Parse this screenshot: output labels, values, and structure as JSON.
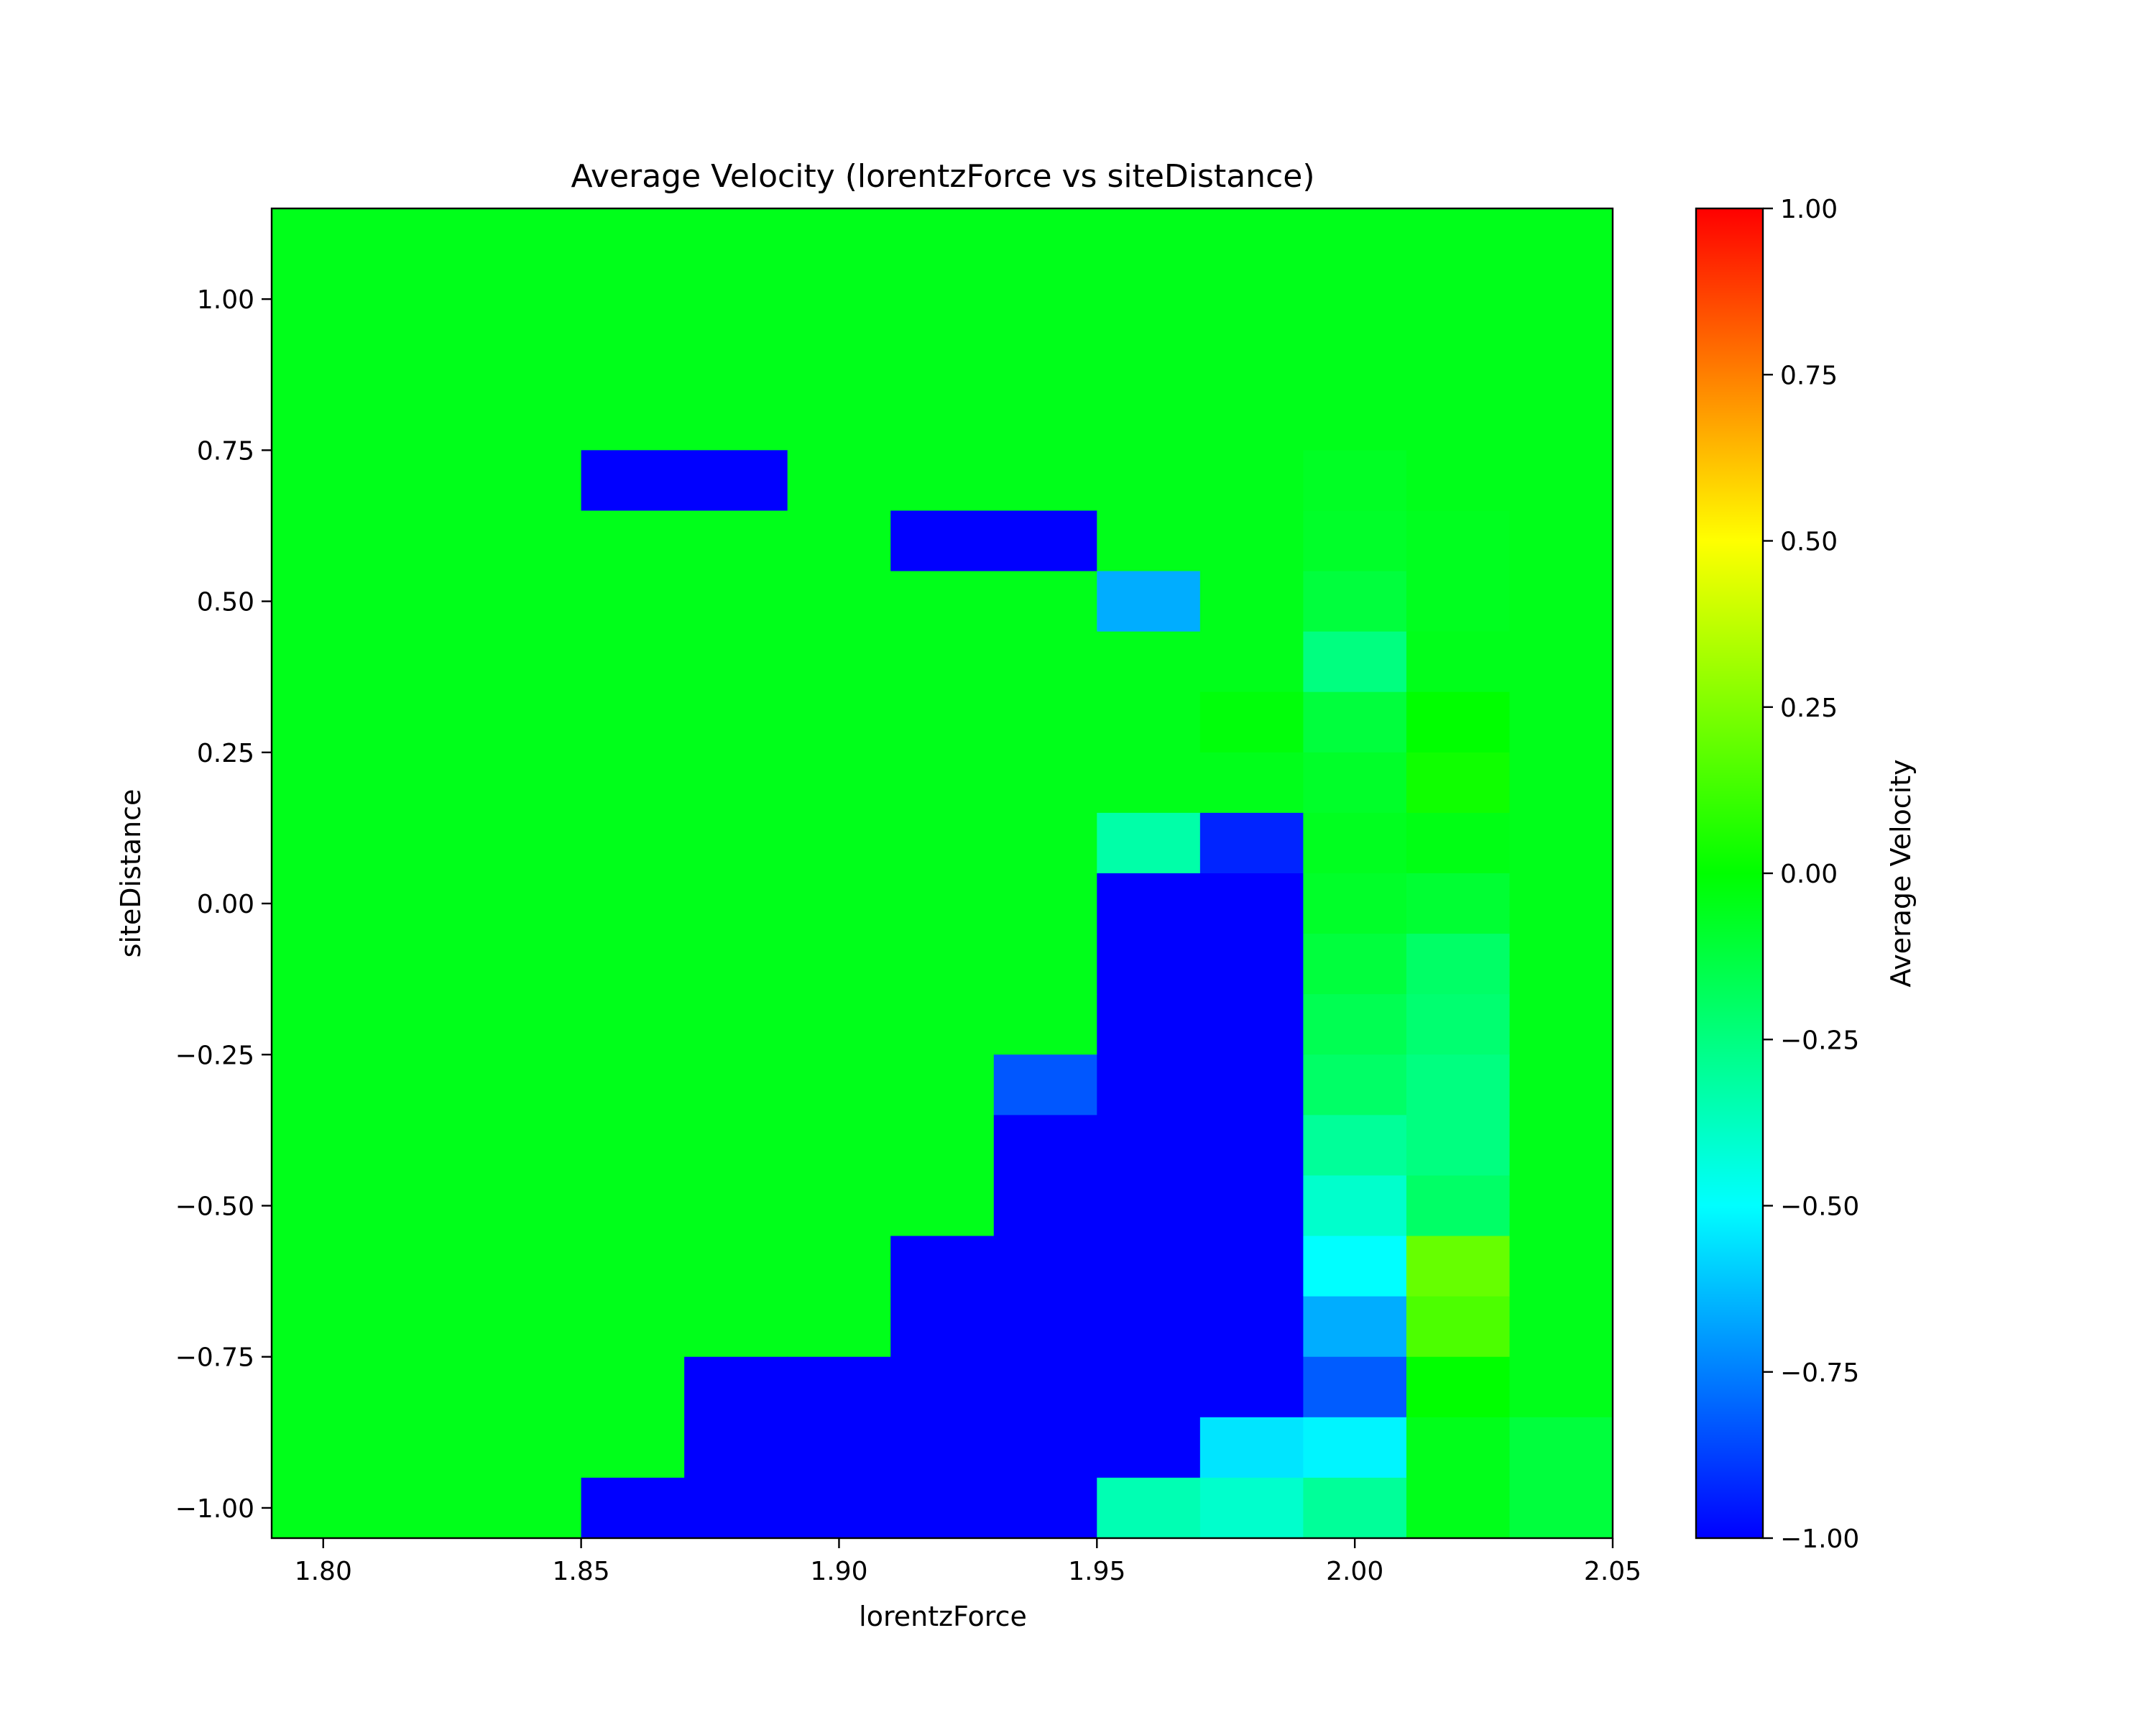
{
  "chart_data": {
    "type": "heatmap",
    "title": "Average Velocity (lorentzForce vs siteDistance)",
    "xlabel": "lorentzForce",
    "ylabel": "siteDistance",
    "colorbar_label": "Average Velocity",
    "colormap": "hsv (blue → cyan → green → yellow → red)",
    "xlim": [
      1.79,
      2.05
    ],
    "ylim": [
      -1.05,
      1.15
    ],
    "x_ticks": [
      "1.80",
      "1.85",
      "1.90",
      "1.95",
      "2.00",
      "2.05"
    ],
    "y_ticks": [
      "−1.00",
      "−0.75",
      "−0.50",
      "−0.25",
      "0.00",
      "0.25",
      "0.50",
      "0.75",
      "1.00"
    ],
    "colorbar_range": [
      -1.0,
      1.0
    ],
    "colorbar_ticks": [
      "−1.00",
      "−0.75",
      "−0.50",
      "−0.25",
      "0.00",
      "0.25",
      "0.50",
      "0.75",
      "1.00"
    ],
    "x_centers": [
      1.8,
      1.82,
      1.84,
      1.86,
      1.88,
      1.9,
      1.92,
      1.94,
      1.96,
      1.98,
      2.0,
      2.02,
      2.04
    ],
    "y_centers": [
      1.1,
      1.0,
      0.9,
      0.8,
      0.7,
      0.6,
      0.5,
      0.4,
      0.3,
      0.2,
      0.1,
      0.0,
      -0.1,
      -0.2,
      -0.3,
      -0.4,
      -0.5,
      -0.6,
      -0.7,
      -0.8,
      -0.9,
      -1.0
    ],
    "values": [
      [
        -0.05,
        -0.05,
        -0.05,
        -0.05,
        -0.05,
        -0.05,
        -0.05,
        -0.05,
        -0.05,
        -0.05,
        -0.05,
        -0.05,
        -0.05
      ],
      [
        -0.05,
        -0.05,
        -0.05,
        -0.05,
        -0.05,
        -0.05,
        -0.05,
        -0.05,
        -0.05,
        -0.05,
        -0.05,
        -0.05,
        -0.05
      ],
      [
        -0.05,
        -0.05,
        -0.05,
        -0.05,
        -0.05,
        -0.05,
        -0.05,
        -0.05,
        -0.05,
        -0.05,
        -0.05,
        -0.05,
        -0.05
      ],
      [
        -0.05,
        -0.05,
        -0.05,
        -0.05,
        -0.05,
        -0.05,
        -0.05,
        -0.05,
        -0.05,
        -0.05,
        -0.05,
        -0.05,
        -0.05
      ],
      [
        -0.05,
        -0.05,
        -0.05,
        -1.0,
        -1.0,
        -0.05,
        -0.05,
        -0.05,
        -0.05,
        -0.05,
        -0.07,
        -0.05,
        -0.05
      ],
      [
        -0.05,
        -0.05,
        -0.05,
        -0.05,
        -0.05,
        -0.05,
        -1.0,
        -1.0,
        -0.05,
        -0.05,
        -0.08,
        -0.06,
        -0.05
      ],
      [
        -0.05,
        -0.05,
        -0.05,
        -0.05,
        -0.05,
        -0.05,
        -0.05,
        -0.05,
        -0.66,
        -0.05,
        -0.12,
        -0.06,
        -0.05
      ],
      [
        -0.05,
        -0.05,
        -0.05,
        -0.05,
        -0.05,
        -0.05,
        -0.05,
        -0.05,
        -0.05,
        -0.05,
        -0.25,
        -0.05,
        -0.05
      ],
      [
        -0.05,
        -0.05,
        -0.05,
        -0.05,
        -0.05,
        -0.05,
        -0.05,
        -0.05,
        -0.05,
        -0.02,
        -0.12,
        0.0,
        -0.05
      ],
      [
        -0.05,
        -0.05,
        -0.05,
        -0.05,
        -0.05,
        -0.05,
        -0.05,
        -0.05,
        -0.05,
        -0.05,
        -0.08,
        0.03,
        -0.05
      ],
      [
        -0.05,
        -0.05,
        -0.05,
        -0.05,
        -0.05,
        -0.05,
        -0.05,
        -0.05,
        -0.33,
        -0.93,
        -0.06,
        -0.04,
        -0.05
      ],
      [
        -0.05,
        -0.05,
        -0.05,
        -0.05,
        -0.05,
        -0.05,
        -0.05,
        -0.05,
        -1.0,
        -1.0,
        -0.08,
        -0.1,
        -0.05
      ],
      [
        -0.05,
        -0.05,
        -0.05,
        -0.05,
        -0.05,
        -0.05,
        -0.05,
        -0.05,
        -1.0,
        -1.0,
        -0.12,
        -0.2,
        -0.05
      ],
      [
        -0.05,
        -0.05,
        -0.05,
        -0.05,
        -0.05,
        -0.05,
        -0.05,
        -0.05,
        -1.0,
        -1.0,
        -0.16,
        -0.22,
        -0.05
      ],
      [
        -0.05,
        -0.05,
        -0.05,
        -0.05,
        -0.05,
        -0.05,
        -0.05,
        -0.83,
        -1.0,
        -1.0,
        -0.2,
        -0.25,
        -0.05
      ],
      [
        -0.05,
        -0.05,
        -0.05,
        -0.05,
        -0.05,
        -0.05,
        -0.05,
        -1.0,
        -1.0,
        -1.0,
        -0.3,
        -0.25,
        -0.05
      ],
      [
        -0.05,
        -0.05,
        -0.05,
        -0.05,
        -0.05,
        -0.05,
        -0.05,
        -1.0,
        -1.0,
        -1.0,
        -0.4,
        -0.2,
        -0.05
      ],
      [
        -0.05,
        -0.05,
        -0.05,
        -0.05,
        -0.05,
        -0.05,
        -1.0,
        -1.0,
        -1.0,
        -1.0,
        -0.5,
        0.2,
        -0.05
      ],
      [
        -0.05,
        -0.05,
        -0.05,
        -0.05,
        -0.05,
        -0.05,
        -1.0,
        -1.0,
        -1.0,
        -1.0,
        -0.66,
        0.15,
        -0.05
      ],
      [
        -0.05,
        -0.05,
        -0.05,
        -0.05,
        -1.0,
        -1.0,
        -1.0,
        -1.0,
        -1.0,
        -1.0,
        -0.82,
        0.0,
        -0.05
      ],
      [
        -0.05,
        -0.05,
        -0.05,
        -0.05,
        -1.0,
        -1.0,
        -1.0,
        -1.0,
        -1.0,
        -0.55,
        -0.52,
        -0.05,
        -0.12
      ],
      [
        -0.05,
        -0.05,
        -0.05,
        -1.0,
        -1.0,
        -1.0,
        -1.0,
        -1.0,
        -0.35,
        -0.4,
        -0.3,
        -0.05,
        -0.12
      ]
    ]
  }
}
